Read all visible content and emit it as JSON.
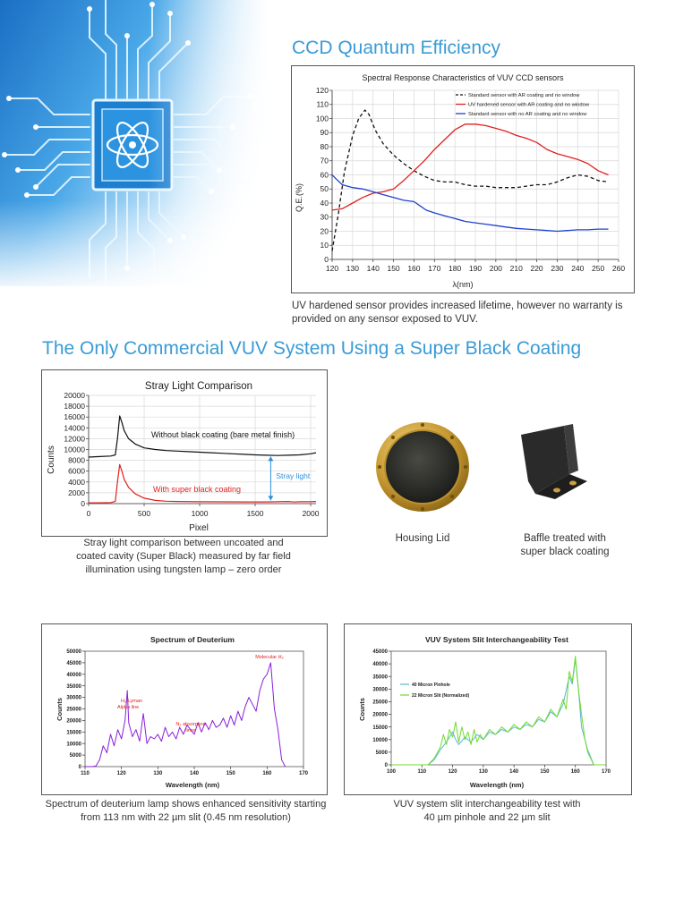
{
  "colors": {
    "heading": "#3a9bd6",
    "black_line": "#111111",
    "red_line": "#e02020",
    "blue_line": "#2040d0",
    "purple_line": "#8a1fd8",
    "green_line": "#6fdc2a",
    "arrow_blue": "#2a8fd8"
  },
  "icons": {
    "hero": "circuit-chip-atom-icon"
  },
  "sections": {
    "ccd_title": "CCD Quantum Efficiency",
    "ccd_caption_1": "UV hardened sensor provides increased lifetime, however no warranty is",
    "ccd_caption_2": "provided on any sensor exposed to VUV.",
    "vuv_title": "The Only Commercial VUV System Using a Super Black Coating",
    "stray_caption_1": "Stray light comparison between uncoated and",
    "stray_caption_2": "coated cavity (Super Black) measured by far field",
    "stray_caption_3": "illumination using tungsten lamp – zero order",
    "housing_caption": "Housing Lid",
    "baffle_caption_1": "Baffle treated with",
    "baffle_caption_2": "super black coating",
    "deut_caption_1": "Spectrum of deuterium lamp shows enhanced sensitivity starting",
    "deut_caption_2": "from 113 nm with 22 µm slit (0.45 nm resolution)",
    "slit_caption_1": "VUV system slit interchangeability test with",
    "slit_caption_2": "40 µm pinhole and 22 µm slit"
  },
  "chart_data": [
    {
      "type": "line",
      "title": "Spectral Response Characteristics of VUV CCD sensors",
      "xlabel": "λ(nm)",
      "ylabel": "Q.E.(%)",
      "xlim": [
        120,
        260
      ],
      "ylim": [
        0,
        120
      ],
      "xticks": [
        "120",
        "130",
        "140",
        "150",
        "160",
        "170",
        "180",
        "190",
        "200",
        "210",
        "220",
        "230",
        "240",
        "250",
        "260"
      ],
      "yticks": [
        "0",
        "10",
        "20",
        "30",
        "40",
        "50",
        "60",
        "70",
        "80",
        "90",
        "100",
        "110",
        "120"
      ],
      "grid": true,
      "legend_position": "top-right",
      "series": [
        {
          "name": "Standard sensor with AR coating and no window",
          "color": "#111111",
          "style": "dashed",
          "x": [
            120,
            123,
            126,
            130,
            133,
            136,
            138,
            141,
            145,
            150,
            155,
            160,
            165,
            170,
            175,
            180,
            185,
            190,
            195,
            200,
            205,
            210,
            215,
            220,
            225,
            230,
            235,
            240,
            245,
            250,
            255
          ],
          "y": [
            6,
            32,
            62,
            88,
            100,
            106,
            103,
            92,
            82,
            74,
            68,
            63,
            59,
            56,
            55,
            55,
            53,
            52,
            52,
            51,
            51,
            51,
            52,
            53,
            53,
            55,
            58,
            60,
            59,
            56,
            55
          ]
        },
        {
          "name": "UV hardened sensor with AR coating and no window",
          "color": "#e02020",
          "style": "solid",
          "x": [
            120,
            125,
            130,
            135,
            140,
            145,
            150,
            155,
            160,
            165,
            170,
            175,
            180,
            185,
            190,
            195,
            200,
            205,
            210,
            215,
            220,
            225,
            230,
            235,
            240,
            245,
            250,
            255
          ],
          "y": [
            35,
            36,
            40,
            44,
            47,
            48,
            50,
            56,
            63,
            70,
            78,
            85,
            92,
            96,
            96,
            95,
            93,
            91,
            88,
            86,
            83,
            78,
            75,
            73,
            71,
            68,
            63,
            60
          ]
        },
        {
          "name": "Standard sensor with no AR coating and no window",
          "color": "#2040d0",
          "style": "solid",
          "x": [
            120,
            122,
            125,
            130,
            135,
            140,
            145,
            150,
            155,
            160,
            163,
            166,
            170,
            175,
            180,
            185,
            190,
            195,
            200,
            205,
            210,
            215,
            220,
            225,
            230,
            235,
            240,
            245,
            250,
            255
          ],
          "y": [
            60,
            57,
            53,
            51,
            50,
            48,
            46,
            44,
            42,
            41,
            38,
            35,
            33,
            31,
            29,
            27,
            26,
            25,
            24,
            23,
            22,
            21.5,
            21,
            20.5,
            20,
            20.5,
            21,
            21,
            21.5,
            21.5
          ]
        }
      ]
    },
    {
      "type": "line",
      "title": "Stray Light Comparison",
      "xlabel": "Pixel",
      "ylabel": "Counts",
      "xlim": [
        0,
        2048
      ],
      "ylim": [
        0,
        20000
      ],
      "xticks": [
        "0",
        "500",
        "1000",
        "1500",
        "2000"
      ],
      "yticks": [
        "0",
        "2000",
        "4000",
        "6000",
        "8000",
        "10000",
        "12000",
        "14000",
        "16000",
        "18000",
        "20000"
      ],
      "grid": true,
      "annotations": [
        "Without black coating (bare metal finish)",
        "With super black coating",
        "Stray light"
      ],
      "series": [
        {
          "name": "Without black coating (bare metal finish)",
          "color": "#111111",
          "x": [
            0,
            100,
            200,
            240,
            260,
            280,
            300,
            320,
            360,
            420,
            500,
            600,
            700,
            800,
            900,
            1000,
            1100,
            1200,
            1300,
            1400,
            1500,
            1600,
            1700,
            1800,
            1900,
            2000,
            2048
          ],
          "y": [
            8600,
            8700,
            8800,
            9000,
            12000,
            16200,
            15000,
            13500,
            12000,
            11000,
            10300,
            10000,
            9800,
            9700,
            9600,
            9500,
            9400,
            9300,
            9200,
            9100,
            9000,
            8950,
            8900,
            8950,
            9000,
            9200,
            9400
          ]
        },
        {
          "name": "With super black coating",
          "color": "#e02020",
          "x": [
            0,
            100,
            200,
            240,
            260,
            280,
            300,
            320,
            360,
            420,
            500,
            600,
            700,
            800,
            1000,
            1200,
            1400,
            1600,
            1700,
            1800,
            1850,
            1900,
            2000,
            2048
          ],
          "y": [
            150,
            150,
            200,
            400,
            4000,
            7200,
            6000,
            4500,
            3000,
            1800,
            1000,
            600,
            450,
            400,
            350,
            330,
            320,
            320,
            350,
            400,
            300,
            350,
            350,
            400
          ]
        }
      ]
    },
    {
      "type": "line",
      "title": "Spectrum of Deuterium",
      "xlabel": "Wavelength (nm)",
      "ylabel": "Counts",
      "xlim": [
        110,
        170
      ],
      "ylim": [
        0,
        50000
      ],
      "xticks": [
        "110",
        "120",
        "130",
        "140",
        "150",
        "160",
        "170"
      ],
      "yticks": [
        "0",
        "5000",
        "10000",
        "15000",
        "20000",
        "25000",
        "30000",
        "35000",
        "40000",
        "45000",
        "50000"
      ],
      "annotations": [
        "Molecular H₂",
        "H₂ Lyman Alpha line",
        "H₂ absorption lines"
      ],
      "series": [
        {
          "name": "",
          "color": "#8a1fd8",
          "x": [
            110,
            112,
            113,
            114,
            115,
            116,
            117,
            118,
            119,
            120,
            121,
            121.6,
            122,
            123,
            124,
            125,
            126,
            127,
            128,
            129,
            130,
            131,
            132,
            133,
            134,
            135,
            136,
            137,
            138,
            139,
            140,
            141,
            142,
            143,
            144,
            145,
            146,
            147,
            148,
            149,
            150,
            151,
            152,
            153,
            154,
            155,
            156,
            157,
            158,
            159,
            160,
            161,
            162,
            163,
            164,
            165
          ],
          "y": [
            0,
            0,
            300,
            3000,
            9000,
            6000,
            14000,
            9000,
            16000,
            12000,
            20000,
            33000,
            19000,
            13000,
            16000,
            11000,
            23000,
            10000,
            13000,
            12000,
            14000,
            11000,
            17000,
            13000,
            15000,
            12000,
            17000,
            14000,
            18000,
            16000,
            14000,
            19000,
            15000,
            19000,
            16000,
            20000,
            17000,
            18000,
            21000,
            17000,
            22000,
            18000,
            24000,
            20000,
            26000,
            30000,
            27000,
            24000,
            33000,
            38000,
            40000,
            45000,
            25000,
            16000,
            3000,
            0
          ]
        }
      ]
    },
    {
      "type": "line",
      "title": "VUV System Slit Interchangeability Test",
      "xlabel": "Wavelength (nm)",
      "ylabel": "Counts",
      "xlim": [
        100,
        170
      ],
      "ylim": [
        0,
        45000
      ],
      "xticks": [
        "100",
        "110",
        "120",
        "130",
        "140",
        "150",
        "160",
        "170"
      ],
      "yticks": [
        "0",
        "5000",
        "10000",
        "15000",
        "20000",
        "25000",
        "30000",
        "35000",
        "40000",
        "45000"
      ],
      "legend_position": "top-left",
      "series": [
        {
          "name": "40 Micron Pinhole",
          "color": "#5ab4e0",
          "x": [
            100,
            112,
            114,
            116,
            118,
            120,
            121,
            122,
            124,
            126,
            128,
            130,
            132,
            134,
            136,
            138,
            140,
            142,
            144,
            146,
            148,
            150,
            152,
            154,
            156,
            158,
            159,
            160,
            161,
            162,
            164,
            166,
            170
          ],
          "y": [
            0,
            0,
            2000,
            6000,
            9000,
            13000,
            10000,
            8000,
            11000,
            9000,
            12000,
            10000,
            13000,
            12000,
            14000,
            13000,
            15000,
            14000,
            16000,
            15000,
            18000,
            17000,
            21000,
            19000,
            24000,
            35000,
            32000,
            42000,
            30000,
            15000,
            6000,
            0,
            0
          ]
        },
        {
          "name": "22 Micron Slit (Normalized)",
          "color": "#6fdc2a",
          "x": [
            100,
            112,
            114,
            116,
            117,
            118,
            119,
            120,
            121,
            122,
            123,
            124,
            125,
            126,
            127,
            128,
            129,
            130,
            132,
            134,
            136,
            138,
            140,
            142,
            144,
            146,
            148,
            150,
            152,
            154,
            156,
            157,
            158,
            159,
            160,
            161,
            162,
            163,
            164,
            166,
            170
          ],
          "y": [
            0,
            0,
            2500,
            7000,
            12000,
            8000,
            14000,
            11000,
            17000,
            9000,
            15000,
            10000,
            13000,
            8000,
            14000,
            9000,
            12000,
            10000,
            14000,
            12000,
            15000,
            13000,
            16000,
            14000,
            17000,
            15000,
            19000,
            17000,
            22000,
            19000,
            26000,
            22000,
            37000,
            33000,
            43000,
            30000,
            20000,
            11000,
            5000,
            0,
            0
          ]
        }
      ]
    }
  ]
}
